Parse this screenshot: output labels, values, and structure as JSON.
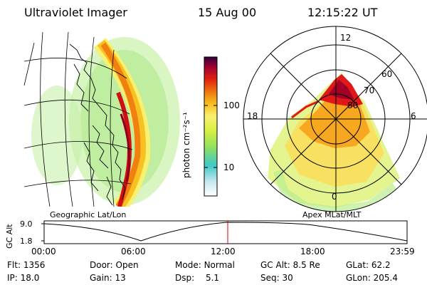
{
  "header": {
    "instrument": "Ultraviolet Imager",
    "date": "15 Aug 00",
    "time": "12:15:22 UT"
  },
  "colorbar": {
    "unit_label": "photon cm⁻²s⁻¹",
    "ticks": [
      "100",
      "10"
    ],
    "scale": "log"
  },
  "geo_panel": {
    "caption": "Geographic Lat/Lon"
  },
  "polar_panel": {
    "caption": "Apex MLat/MLT",
    "mlt_labels": {
      "top": "12",
      "left": "18",
      "right": "6",
      "bottom": "0"
    },
    "lat_labels": [
      "60",
      "70",
      "80"
    ]
  },
  "altitude_plot": {
    "ylabel": "GC Alt",
    "yticks": [
      "9.0",
      "1.8"
    ],
    "xticks": [
      "00:00",
      "06:00",
      "12:00",
      "18:00",
      "23:59"
    ],
    "current_time_marker": "12:15"
  },
  "info": {
    "flt_label": "Flt:",
    "flt_value": "1356",
    "ip_label": "IP:",
    "ip_value": "18.0",
    "door_label": "Door:",
    "door_value": "Open",
    "gain_label": "Gain:",
    "gain_value": "13",
    "mode_label": "Mode:",
    "mode_value": "Normal",
    "dsp_label": "Dsp:",
    "dsp_value": "5.1",
    "gcalt_label": "GC Alt:",
    "gcalt_value": "8.5 Re",
    "seq_label": "Seq:",
    "seq_value": "30",
    "glat_label": "GLat:",
    "glat_value": "62.2",
    "glon_label": "GLon:",
    "glon_value": "205.4"
  },
  "colors": {
    "colorbar_stops": [
      "#ffffff",
      "#c8e8ee",
      "#3ec8c8",
      "#90e060",
      "#d8f040",
      "#f8f070",
      "#f8c020",
      "#f08010",
      "#e02010",
      "#a00030",
      "#300040"
    ]
  }
}
